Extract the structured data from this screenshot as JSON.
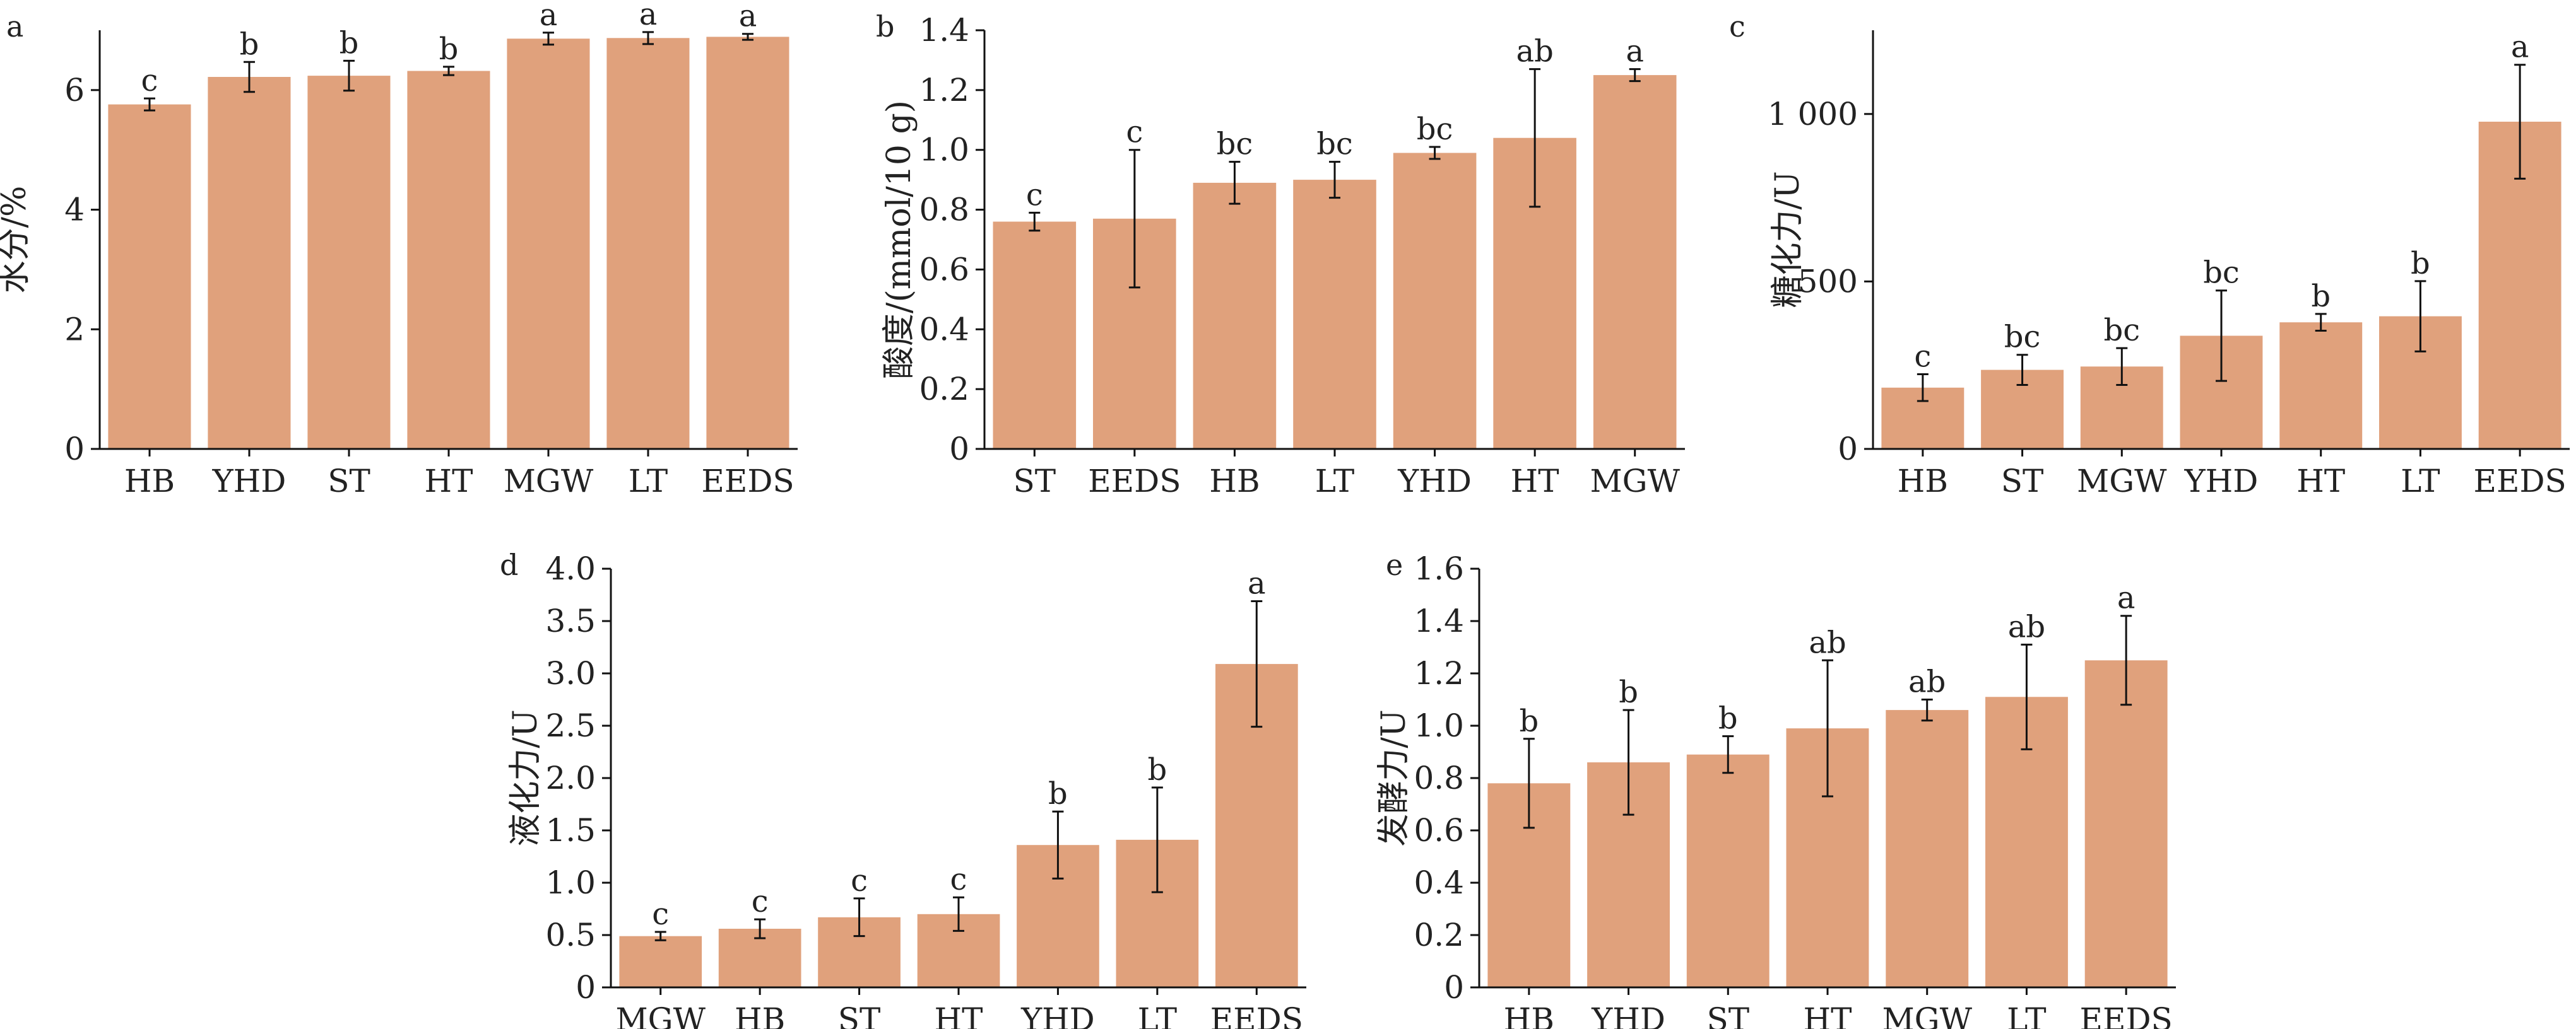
{
  "figure": {
    "bar_color": "#e0a17c",
    "panels": [
      {
        "panel_label": "a",
        "chart_data": {
          "type": "bar",
          "ylabel": "水分/%",
          "categories": [
            "HB",
            "YHD",
            "ST",
            "HT",
            "MGW",
            "LT",
            "EEDS"
          ],
          "values": [
            5.76,
            6.22,
            6.24,
            6.32,
            6.86,
            6.87,
            6.89
          ],
          "errors": [
            0.1,
            0.25,
            0.25,
            0.07,
            0.1,
            0.1,
            0.05
          ],
          "significance": [
            "c",
            "b",
            "b",
            "b",
            "a",
            "a",
            "a"
          ],
          "ylim": [
            0,
            7.0
          ],
          "yticks": [
            0,
            2,
            4,
            6
          ],
          "ytick_labels": [
            "0",
            "2",
            "4",
            "6"
          ]
        }
      },
      {
        "panel_label": "b",
        "chart_data": {
          "type": "bar",
          "ylabel": "酸度/(mmol/10 g)",
          "categories": [
            "ST",
            "EEDS",
            "HB",
            "LT",
            "YHD",
            "HT",
            "MGW"
          ],
          "values": [
            0.76,
            0.77,
            0.89,
            0.9,
            0.99,
            1.04,
            1.25
          ],
          "errors": [
            0.03,
            0.23,
            0.07,
            0.06,
            0.02,
            0.23,
            0.02
          ],
          "significance": [
            "c",
            "c",
            "bc",
            "bc",
            "bc",
            "ab",
            "a"
          ],
          "ylim": [
            0,
            1.4
          ],
          "yticks": [
            0,
            0.2,
            0.4,
            0.6,
            0.8,
            1.0,
            1.2,
            1.4
          ],
          "ytick_labels": [
            "0",
            "0.2",
            "0.4",
            "0.6",
            "0.8",
            "1.0",
            "1.2",
            "1.4"
          ]
        }
      },
      {
        "panel_label": "c",
        "chart_data": {
          "type": "bar",
          "ylabel": "糖化力/U",
          "categories": [
            "HB",
            "ST",
            "MGW",
            "YHD",
            "HT",
            "LT",
            "EEDS"
          ],
          "values": [
            183,
            236,
            246,
            338,
            378,
            396,
            977
          ],
          "errors": [
            40,
            45,
            55,
            135,
            25,
            105,
            170
          ],
          "significance": [
            "c",
            "bc",
            "bc",
            "bc",
            "b",
            "b",
            "a"
          ],
          "ylim": [
            0,
            1250
          ],
          "yticks": [
            0,
            500,
            1000
          ],
          "ytick_labels": [
            "0",
            "500",
            "1 000"
          ]
        }
      },
      {
        "panel_label": "d",
        "chart_data": {
          "type": "bar",
          "ylabel": "液化力/U",
          "categories": [
            "MGW",
            "HB",
            "ST",
            "HT",
            "YHD",
            "LT",
            "EEDS"
          ],
          "values": [
            0.49,
            0.56,
            0.67,
            0.7,
            1.36,
            1.41,
            3.09
          ],
          "errors": [
            0.04,
            0.09,
            0.18,
            0.16,
            0.32,
            0.5,
            0.6
          ],
          "significance": [
            "c",
            "c",
            "c",
            "c",
            "b",
            "b",
            "a"
          ],
          "ylim": [
            0,
            4.0
          ],
          "yticks": [
            0,
            0.5,
            1.0,
            1.5,
            2.0,
            2.5,
            3.0,
            3.5,
            4.0
          ],
          "ytick_labels": [
            "0",
            "0.5",
            "1.0",
            "1.5",
            "2.0",
            "2.5",
            "3.0",
            "3.5",
            "4.0"
          ]
        }
      },
      {
        "panel_label": "e",
        "chart_data": {
          "type": "bar",
          "ylabel": "发酵力/U",
          "categories": [
            "HB",
            "YHD",
            "ST",
            "HT",
            "MGW",
            "LT",
            "EEDS"
          ],
          "values": [
            0.78,
            0.86,
            0.89,
            0.99,
            1.06,
            1.11,
            1.25
          ],
          "errors": [
            0.17,
            0.2,
            0.07,
            0.26,
            0.04,
            0.2,
            0.17
          ],
          "significance": [
            "b",
            "b",
            "b",
            "ab",
            "ab",
            "ab",
            "a"
          ],
          "ylim": [
            0,
            1.6
          ],
          "yticks": [
            0,
            0.2,
            0.4,
            0.6,
            0.8,
            1.0,
            1.2,
            1.4,
            1.6
          ],
          "ytick_labels": [
            "0",
            "0.2",
            "0.4",
            "0.6",
            "0.8",
            "1.0",
            "1.2",
            "1.4",
            "1.6"
          ]
        }
      }
    ]
  }
}
